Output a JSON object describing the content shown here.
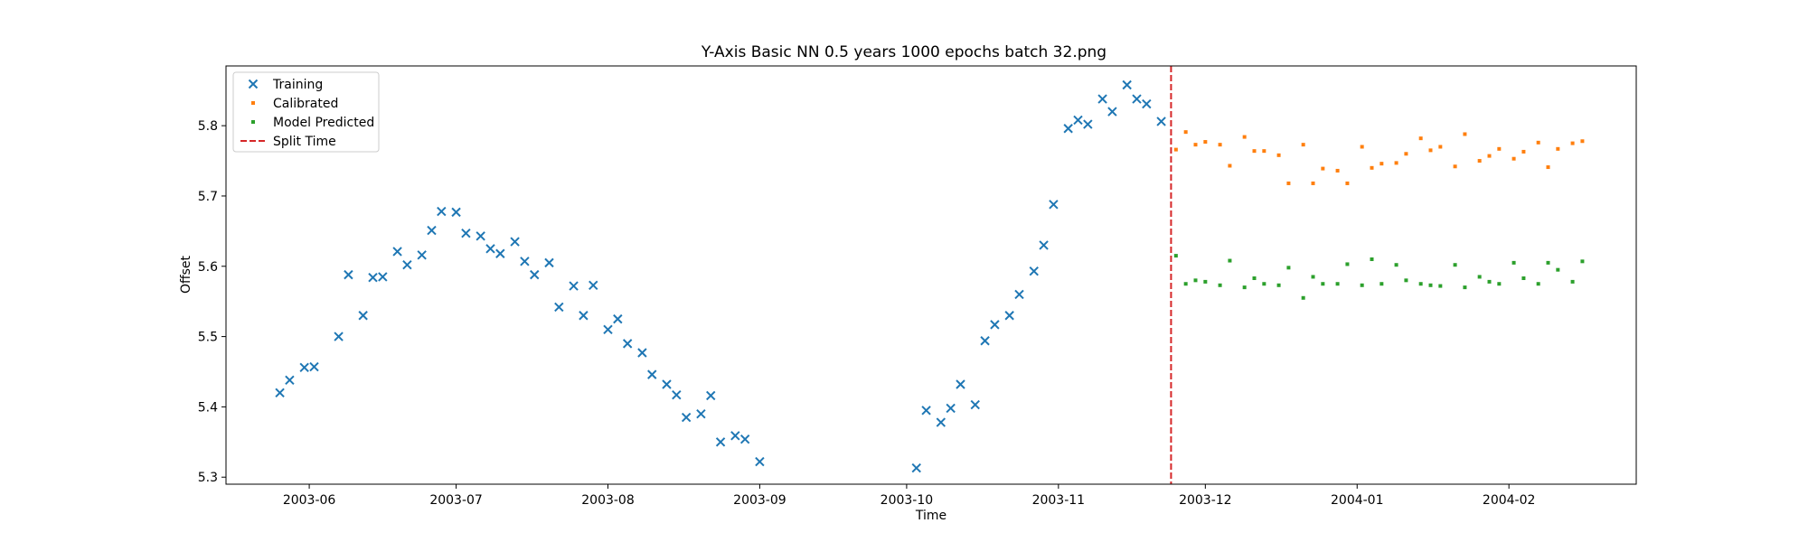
{
  "chart_data": {
    "type": "scatter",
    "title": "Y-Axis Basic NN 0.5 years 1000 epochs batch 32.png",
    "xlabel": "Time",
    "ylabel": "Offset",
    "x_ticks": [
      "2003-06",
      "2003-07",
      "2003-08",
      "2003-09",
      "2003-10",
      "2003-11",
      "2003-12",
      "2004-01",
      "2004-02"
    ],
    "y_ticks": [
      "5.3",
      "5.4",
      "5.5",
      "5.6",
      "5.7",
      "5.8"
    ],
    "xlim": [
      "2003-05-15",
      "2004-02-27"
    ],
    "ylim": [
      5.29,
      5.885
    ],
    "grid": false,
    "legend_position": "top-left",
    "split_time": "2003-11-24",
    "series": [
      {
        "name": "Training",
        "marker": "x",
        "color": "#1f77b4",
        "points": [
          [
            "2003-05-26",
            5.42
          ],
          [
            "2003-05-28",
            5.438
          ],
          [
            "2003-05-31",
            5.456
          ],
          [
            "2003-06-02",
            5.457
          ],
          [
            "2003-06-07",
            5.5
          ],
          [
            "2003-06-09",
            5.588
          ],
          [
            "2003-06-12",
            5.53
          ],
          [
            "2003-06-14",
            5.584
          ],
          [
            "2003-06-16",
            5.585
          ],
          [
            "2003-06-19",
            5.621
          ],
          [
            "2003-06-21",
            5.602
          ],
          [
            "2003-06-24",
            5.616
          ],
          [
            "2003-06-26",
            5.651
          ],
          [
            "2003-06-28",
            5.678
          ],
          [
            "2003-07-01",
            5.677
          ],
          [
            "2003-07-03",
            5.647
          ],
          [
            "2003-07-06",
            5.643
          ],
          [
            "2003-07-08",
            5.625
          ],
          [
            "2003-07-10",
            5.618
          ],
          [
            "2003-07-13",
            5.635
          ],
          [
            "2003-07-15",
            5.607
          ],
          [
            "2003-07-17",
            5.588
          ],
          [
            "2003-07-20",
            5.605
          ],
          [
            "2003-07-22",
            5.542
          ],
          [
            "2003-07-25",
            5.572
          ],
          [
            "2003-07-27",
            5.53
          ],
          [
            "2003-07-29",
            5.573
          ],
          [
            "2003-08-01",
            5.51
          ],
          [
            "2003-08-03",
            5.525
          ],
          [
            "2003-08-05",
            5.49
          ],
          [
            "2003-08-08",
            5.477
          ],
          [
            "2003-08-10",
            5.446
          ],
          [
            "2003-08-13",
            5.432
          ],
          [
            "2003-08-15",
            5.417
          ],
          [
            "2003-08-17",
            5.385
          ],
          [
            "2003-08-20",
            5.39
          ],
          [
            "2003-08-22",
            5.416
          ],
          [
            "2003-08-24",
            5.35
          ],
          [
            "2003-08-27",
            5.359
          ],
          [
            "2003-08-29",
            5.354
          ],
          [
            "2003-09-01",
            5.322
          ],
          [
            "2003-10-03",
            5.313
          ],
          [
            "2003-10-05",
            5.395
          ],
          [
            "2003-10-08",
            5.378
          ],
          [
            "2003-10-10",
            5.398
          ],
          [
            "2003-10-12",
            5.432
          ],
          [
            "2003-10-15",
            5.403
          ],
          [
            "2003-10-17",
            5.494
          ],
          [
            "2003-10-19",
            5.517
          ],
          [
            "2003-10-22",
            5.53
          ],
          [
            "2003-10-24",
            5.56
          ],
          [
            "2003-10-27",
            5.593
          ],
          [
            "2003-10-29",
            5.63
          ],
          [
            "2003-10-31",
            5.688
          ],
          [
            "2003-11-03",
            5.796
          ],
          [
            "2003-11-05",
            5.808
          ],
          [
            "2003-11-07",
            5.802
          ],
          [
            "2003-11-10",
            5.838
          ],
          [
            "2003-11-12",
            5.82
          ],
          [
            "2003-11-15",
            5.858
          ],
          [
            "2003-11-17",
            5.838
          ],
          [
            "2003-11-19",
            5.831
          ],
          [
            "2003-11-22",
            5.806
          ]
        ]
      },
      {
        "name": "Calibrated",
        "marker": "square",
        "color": "#ff7f0e",
        "points": [
          [
            "2003-11-25",
            5.766
          ],
          [
            "2003-11-27",
            5.791
          ],
          [
            "2003-11-29",
            5.773
          ],
          [
            "2003-12-01",
            5.777
          ],
          [
            "2003-12-04",
            5.773
          ],
          [
            "2003-12-06",
            5.743
          ],
          [
            "2003-12-09",
            5.784
          ],
          [
            "2003-12-11",
            5.764
          ],
          [
            "2003-12-13",
            5.764
          ],
          [
            "2003-12-16",
            5.758
          ],
          [
            "2003-12-18",
            5.718
          ],
          [
            "2003-12-21",
            5.773
          ],
          [
            "2003-12-23",
            5.718
          ],
          [
            "2003-12-25",
            5.739
          ],
          [
            "2003-12-28",
            5.736
          ],
          [
            "2003-12-30",
            5.718
          ],
          [
            "2004-01-02",
            5.77
          ],
          [
            "2004-01-04",
            5.74
          ],
          [
            "2004-01-06",
            5.746
          ],
          [
            "2004-01-09",
            5.747
          ],
          [
            "2004-01-11",
            5.76
          ],
          [
            "2004-01-14",
            5.782
          ],
          [
            "2004-01-16",
            5.765
          ],
          [
            "2004-01-18",
            5.77
          ],
          [
            "2004-01-21",
            5.742
          ],
          [
            "2004-01-23",
            5.788
          ],
          [
            "2004-01-26",
            5.75
          ],
          [
            "2004-01-28",
            5.757
          ],
          [
            "2004-01-30",
            5.767
          ],
          [
            "2004-02-02",
            5.753
          ],
          [
            "2004-02-04",
            5.763
          ],
          [
            "2004-02-07",
            5.776
          ],
          [
            "2004-02-09",
            5.741
          ],
          [
            "2004-02-11",
            5.767
          ],
          [
            "2004-02-14",
            5.775
          ],
          [
            "2004-02-16",
            5.778
          ]
        ]
      },
      {
        "name": "Model Predicted",
        "marker": "square",
        "color": "#2ca02c",
        "points": [
          [
            "2003-11-25",
            5.615
          ],
          [
            "2003-11-27",
            5.575
          ],
          [
            "2003-11-29",
            5.58
          ],
          [
            "2003-12-01",
            5.578
          ],
          [
            "2003-12-04",
            5.573
          ],
          [
            "2003-12-06",
            5.608
          ],
          [
            "2003-12-09",
            5.57
          ],
          [
            "2003-12-11",
            5.583
          ],
          [
            "2003-12-13",
            5.575
          ],
          [
            "2003-12-16",
            5.573
          ],
          [
            "2003-12-18",
            5.598
          ],
          [
            "2003-12-21",
            5.555
          ],
          [
            "2003-12-23",
            5.585
          ],
          [
            "2003-12-25",
            5.575
          ],
          [
            "2003-12-28",
            5.575
          ],
          [
            "2003-12-30",
            5.603
          ],
          [
            "2004-01-02",
            5.573
          ],
          [
            "2004-01-04",
            5.61
          ],
          [
            "2004-01-06",
            5.575
          ],
          [
            "2004-01-09",
            5.602
          ],
          [
            "2004-01-11",
            5.58
          ],
          [
            "2004-01-14",
            5.575
          ],
          [
            "2004-01-16",
            5.573
          ],
          [
            "2004-01-18",
            5.572
          ],
          [
            "2004-01-21",
            5.602
          ],
          [
            "2004-01-23",
            5.57
          ],
          [
            "2004-01-26",
            5.585
          ],
          [
            "2004-01-28",
            5.578
          ],
          [
            "2004-01-30",
            5.575
          ],
          [
            "2004-02-02",
            5.605
          ],
          [
            "2004-02-04",
            5.583
          ],
          [
            "2004-02-07",
            5.575
          ],
          [
            "2004-02-09",
            5.605
          ],
          [
            "2004-02-11",
            5.595
          ],
          [
            "2004-02-14",
            5.578
          ],
          [
            "2004-02-16",
            5.607
          ]
        ]
      }
    ],
    "legend": {
      "entries": [
        {
          "label": "Training",
          "marker": "x",
          "color": "#1f77b4"
        },
        {
          "label": "Calibrated",
          "marker": "square",
          "color": "#ff7f0e"
        },
        {
          "label": "Model Predicted",
          "marker": "square",
          "color": "#2ca02c"
        },
        {
          "label": "Split Time",
          "marker": "dashed-line",
          "color": "#d62728"
        }
      ]
    }
  }
}
